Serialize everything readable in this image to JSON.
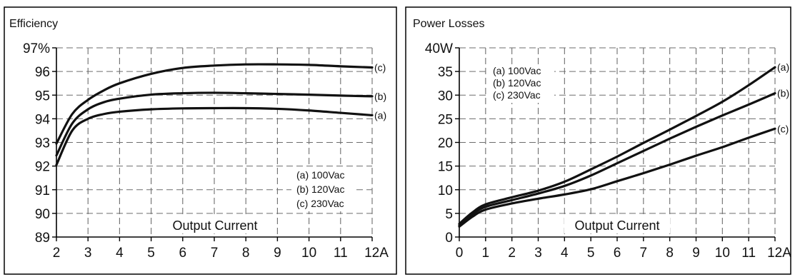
{
  "chart_data": [
    {
      "type": "line",
      "title": "Efficiency",
      "xlabel": "Output Current",
      "ylabel": "",
      "xlim": [
        2,
        12
      ],
      "ylim": [
        89,
        97
      ],
      "x_ticks": [
        "2",
        "3",
        "4",
        "5",
        "6",
        "7",
        "8",
        "9",
        "10",
        "11",
        "12A"
      ],
      "y_ticks": [
        "89",
        "90",
        "91",
        "92",
        "93",
        "94",
        "95",
        "96",
        "97%"
      ],
      "grid": true,
      "legend_position": "bottom-right",
      "legend": [
        "(a) 100Vac",
        "(b) 120Vac",
        "(c)  230Vac"
      ],
      "series": [
        {
          "name": "(c)",
          "x": [
            2,
            2.5,
            3,
            3.5,
            4,
            5,
            6,
            7,
            8,
            9,
            10,
            11,
            12
          ],
          "values": [
            92.95,
            94.2,
            94.8,
            95.2,
            95.5,
            95.9,
            96.15,
            96.25,
            96.3,
            96.3,
            96.28,
            96.22,
            96.17
          ]
        },
        {
          "name": "(b)",
          "x": [
            2,
            2.5,
            3,
            3.5,
            4,
            5,
            6,
            7,
            8,
            9,
            10,
            11,
            12
          ],
          "values": [
            92.45,
            93.8,
            94.4,
            94.7,
            94.85,
            95.02,
            95.08,
            95.1,
            95.08,
            95.05,
            95.02,
            94.98,
            94.95
          ]
        },
        {
          "name": "(a)",
          "x": [
            2,
            2.5,
            3,
            3.5,
            4,
            5,
            6,
            7,
            8,
            9,
            10,
            11,
            12
          ],
          "values": [
            92.05,
            93.5,
            94.0,
            94.2,
            94.3,
            94.4,
            94.44,
            94.45,
            94.45,
            94.42,
            94.35,
            94.25,
            94.15
          ]
        }
      ]
    },
    {
      "type": "line",
      "title": "Power Losses",
      "xlabel": "Output Current",
      "ylabel": "",
      "xlim": [
        0,
        12
      ],
      "ylim": [
        0,
        40
      ],
      "x_ticks": [
        "0",
        "1",
        "2",
        "3",
        "4",
        "5",
        "6",
        "7",
        "8",
        "9",
        "10",
        "11",
        "12A"
      ],
      "y_ticks": [
        "0",
        "5",
        "10",
        "15",
        "20",
        "25",
        "30",
        "35",
        "40W"
      ],
      "grid": true,
      "legend_position": "top-left",
      "legend": [
        "(a) 100Vac",
        "(b) 120Vac",
        "(c)  230Vac"
      ],
      "series": [
        {
          "name": "(a)",
          "x": [
            0,
            0.5,
            1,
            2,
            3,
            4,
            5,
            6,
            7,
            8,
            9,
            10,
            11,
            12
          ],
          "values": [
            2.8,
            5.2,
            6.9,
            8.4,
            9.8,
            11.7,
            14.3,
            17.0,
            19.9,
            22.7,
            25.6,
            28.6,
            32.1,
            35.9
          ]
        },
        {
          "name": "(b)",
          "x": [
            0,
            0.5,
            1,
            2,
            3,
            4,
            5,
            6,
            7,
            8,
            9,
            10,
            11,
            12
          ],
          "values": [
            2.5,
            4.8,
            6.4,
            7.8,
            9.2,
            10.8,
            13.0,
            15.6,
            18.2,
            20.8,
            23.3,
            25.7,
            28.0,
            30.4
          ]
        },
        {
          "name": "(c)",
          "x": [
            0,
            0.5,
            1,
            2,
            3,
            4,
            5,
            6,
            7,
            8,
            9,
            10,
            11,
            12
          ],
          "values": [
            2.2,
            4.3,
            5.8,
            7.1,
            8.1,
            9.0,
            10.1,
            11.8,
            13.5,
            15.3,
            17.2,
            19.0,
            21.0,
            22.9
          ]
        }
      ]
    }
  ]
}
